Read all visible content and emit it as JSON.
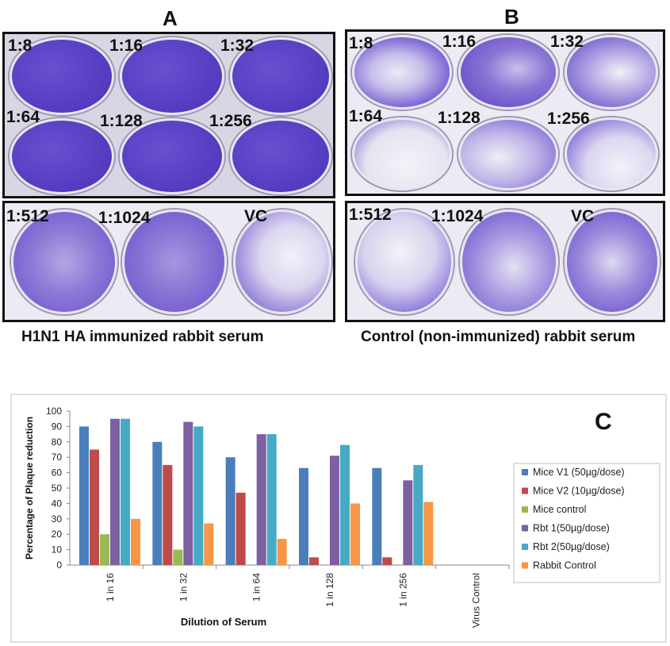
{
  "panels": {
    "A": {
      "letter": "A",
      "labels": [
        "1:8",
        "1:16",
        "1:32",
        "1:64",
        "1:128",
        "1:256",
        "1:512",
        "1:1024",
        "VC"
      ],
      "caption": "H1N1 HA immunized rabbit serum"
    },
    "B": {
      "letter": "B",
      "labels": [
        "1:8",
        "1:16",
        "1:32",
        "1:64",
        "1:128",
        "1:256",
        "1:512",
        "1:1024",
        "VC"
      ],
      "caption": "Control (non-immunized) rabbit serum"
    }
  },
  "chart_letter": "C",
  "chart_data": {
    "type": "bar",
    "title": "",
    "xlabel": "Dilution of Serum",
    "ylabel": "Percentage of Plaque reduction",
    "ylim": [
      0,
      100
    ],
    "yticks": [
      0,
      10,
      20,
      30,
      40,
      50,
      60,
      70,
      80,
      90,
      100
    ],
    "grid": false,
    "legend_position": "right",
    "categories": [
      "1 in 16",
      "1 in 32",
      "1 in 64",
      "1 in 128",
      "1 in 256",
      "Virus Control"
    ],
    "series": [
      {
        "name": "Mice V1 (50µg/dose)",
        "color": "#4a7ebb",
        "values": [
          90,
          80,
          70,
          63,
          63,
          0
        ]
      },
      {
        "name": "Mice V2 (10µg/dose)",
        "color": "#be4b48",
        "values": [
          75,
          65,
          47,
          5,
          5,
          0
        ]
      },
      {
        "name": "Mice control",
        "color": "#98b954",
        "values": [
          20,
          10,
          0,
          0,
          0,
          0
        ]
      },
      {
        "name": "Rbt 1(50µg/dose)",
        "color": "#7d60a0",
        "values": [
          95,
          93,
          85,
          71,
          55,
          0
        ]
      },
      {
        "name": "Rbt 2(50µg/dose)",
        "color": "#46aac5",
        "values": [
          95,
          90,
          85,
          78,
          65,
          0
        ]
      },
      {
        "name": "Rabbit Control",
        "color": "#f79646",
        "values": [
          30,
          27,
          17,
          40,
          41,
          0
        ]
      }
    ]
  }
}
